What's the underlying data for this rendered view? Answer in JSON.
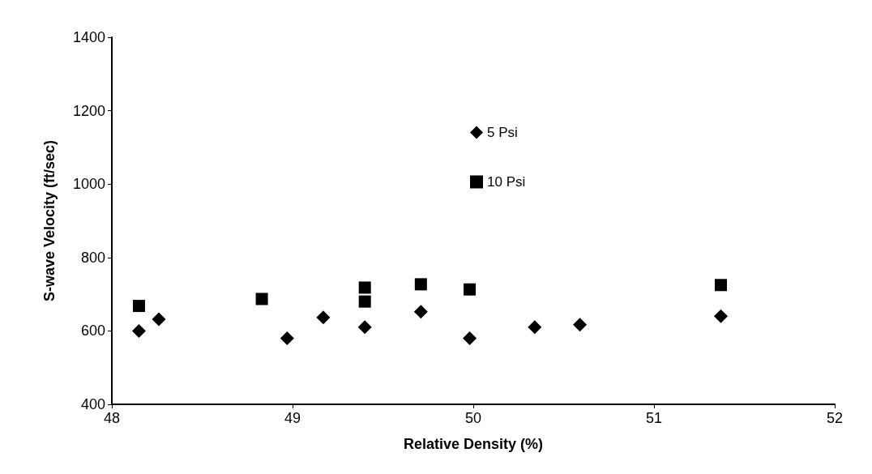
{
  "chart_data": {
    "type": "scatter",
    "xlabel": "Relative Density (%)",
    "ylabel": "S-wave Velocity (ft/sec)",
    "xlim": [
      48,
      52
    ],
    "xticks": [
      48,
      49,
      50,
      51,
      52
    ],
    "ylim": [
      400,
      1400
    ],
    "yticks": [
      400,
      600,
      800,
      1000,
      1200,
      1400
    ],
    "grid": false,
    "legend": "top",
    "series": [
      {
        "name": "5 Psi",
        "color": "#000000",
        "marker": "diamond",
        "x": [
          48.15,
          48.26,
          48.97,
          49.17,
          49.4,
          49.71,
          49.98,
          50.34,
          50.59,
          51.37
        ],
        "values": [
          600,
          632,
          580,
          637,
          610,
          652,
          580,
          610,
          617,
          640
        ]
      },
      {
        "name": "10 Psi",
        "color": "#000000",
        "marker": "square",
        "x": [
          48.15,
          48.83,
          49.4,
          49.4,
          49.71,
          49.98,
          51.37
        ],
        "values": [
          668,
          687,
          680,
          718,
          727,
          713,
          725
        ]
      }
    ]
  }
}
